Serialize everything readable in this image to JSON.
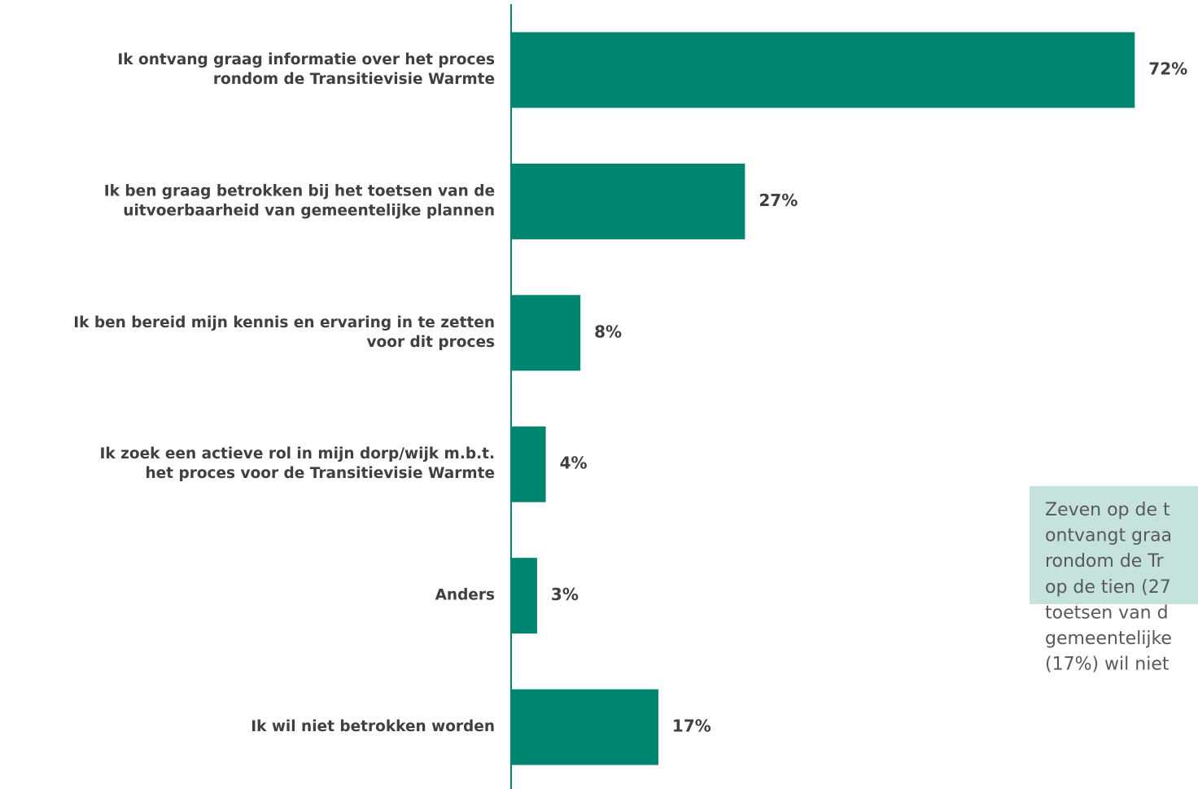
{
  "chart_data": {
    "type": "barh",
    "categories": [
      [
        "Ik ontvang graag informatie over het proces",
        "rondom de Transitievisie Warmte"
      ],
      [
        "Ik ben graag betrokken bij het toetsen van de",
        "uitvoerbaarheid van gemeentelijke plannen"
      ],
      [
        "Ik ben bereid mijn kennis en ervaring in te zetten",
        "voor dit proces"
      ],
      [
        "Ik zoek een actieve rol in mijn dorp/wijk m.b.t.",
        "het proces voor de Transitievisie Warmte"
      ],
      [
        "Anders"
      ],
      [
        "Ik wil niet betrokken worden"
      ]
    ],
    "values": [
      72,
      27,
      8,
      4,
      3,
      17
    ],
    "value_labels": [
      "72%",
      "27%",
      "8%",
      "4%",
      "3%",
      "17%"
    ],
    "color": "#008570",
    "xlim": [
      0,
      79.3
    ],
    "annotation": [
      "Zeven op de t",
      "ontvangt graa",
      "rondom de Tr",
      "op de tien (27",
      "toetsen van d",
      "gemeentelijke",
      "(17%) wil niet"
    ]
  }
}
